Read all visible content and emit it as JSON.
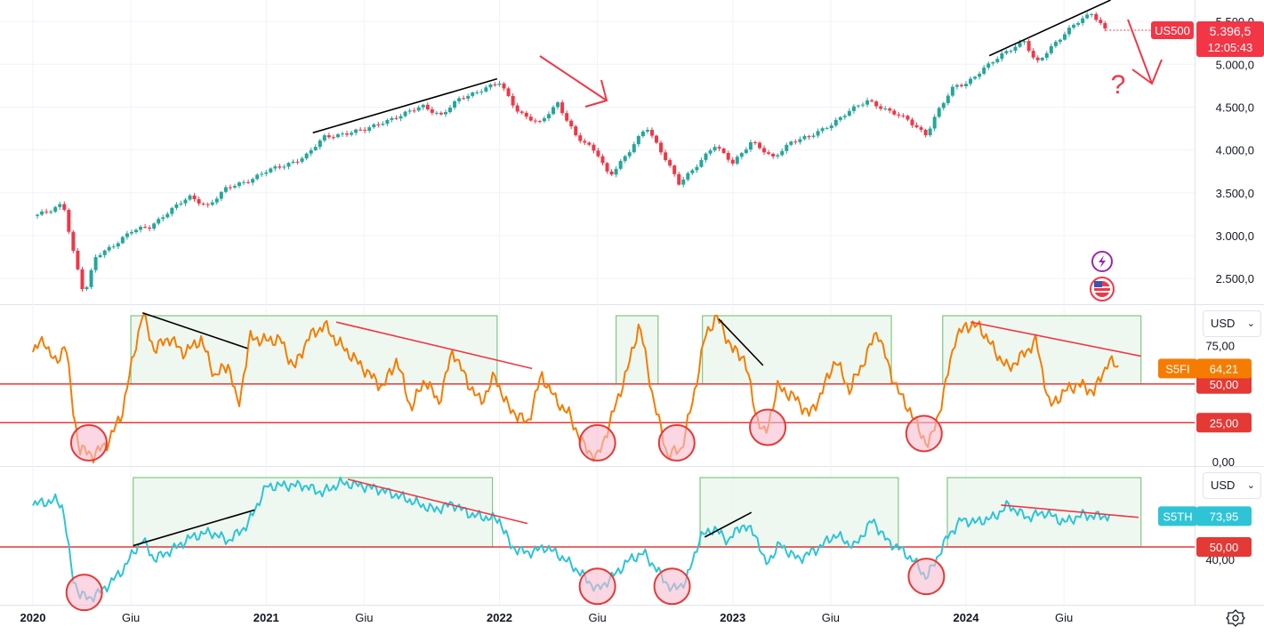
{
  "chart_data": [
    {
      "type": "candlestick",
      "symbol": "US500",
      "last_price": "5.396,5",
      "countdown": "12:05:43",
      "y_ticks": [
        "5.500,0",
        "5.000,0",
        "4.500,0",
        "4.000,0",
        "3.500,0",
        "3.000,0",
        "2.500,0"
      ],
      "ylim": [
        2200,
        5750
      ],
      "x_ticks": [
        "2020",
        "Giu",
        "2021",
        "Giu",
        "2022",
        "Giu",
        "2023",
        "Giu",
        "2024",
        "Giu"
      ],
      "close_path": [
        [
          2020.0,
          3230
        ],
        [
          2020.08,
          3290
        ],
        [
          2020.13,
          3380
        ],
        [
          2020.17,
          2850
        ],
        [
          2020.22,
          2300
        ],
        [
          2020.27,
          2750
        ],
        [
          2020.35,
          2900
        ],
        [
          2020.42,
          3050
        ],
        [
          2020.5,
          3100
        ],
        [
          2020.58,
          3280
        ],
        [
          2020.67,
          3450
        ],
        [
          2020.75,
          3350
        ],
        [
          2020.83,
          3550
        ],
        [
          2020.92,
          3640
        ],
        [
          2021.0,
          3750
        ],
        [
          2021.08,
          3820
        ],
        [
          2021.17,
          3930
        ],
        [
          2021.25,
          4150
        ],
        [
          2021.33,
          4190
        ],
        [
          2021.42,
          4230
        ],
        [
          2021.5,
          4330
        ],
        [
          2021.58,
          4400
        ],
        [
          2021.67,
          4520
        ],
        [
          2021.75,
          4400
        ],
        [
          2021.83,
          4600
        ],
        [
          2021.92,
          4700
        ],
        [
          2022.0,
          4780
        ],
        [
          2022.08,
          4450
        ],
        [
          2022.17,
          4300
        ],
        [
          2022.25,
          4550
        ],
        [
          2022.33,
          4150
        ],
        [
          2022.42,
          3960
        ],
        [
          2022.47,
          3700
        ],
        [
          2022.55,
          3950
        ],
        [
          2022.63,
          4280
        ],
        [
          2022.7,
          3950
        ],
        [
          2022.77,
          3600
        ],
        [
          2022.83,
          3780
        ],
        [
          2022.92,
          4050
        ],
        [
          2023.0,
          3850
        ],
        [
          2023.08,
          4100
        ],
        [
          2023.17,
          3900
        ],
        [
          2023.25,
          4100
        ],
        [
          2023.33,
          4150
        ],
        [
          2023.42,
          4300
        ],
        [
          2023.5,
          4450
        ],
        [
          2023.58,
          4580
        ],
        [
          2023.67,
          4450
        ],
        [
          2023.75,
          4350
        ],
        [
          2023.83,
          4180
        ],
        [
          2023.88,
          4450
        ],
        [
          2023.95,
          4750
        ],
        [
          2024.0,
          4780
        ],
        [
          2024.08,
          4950
        ],
        [
          2024.17,
          5150
        ],
        [
          2024.25,
          5270
        ],
        [
          2024.3,
          5000
        ],
        [
          2024.38,
          5250
        ],
        [
          2024.46,
          5450
        ],
        [
          2024.54,
          5600
        ],
        [
          2024.6,
          5400
        ]
      ],
      "trendlines": [
        {
          "color": "#000000",
          "from": [
            2021.2,
            4200
          ],
          "to": [
            2021.99,
            4830
          ]
        },
        {
          "color": "#000000",
          "from": [
            2024.1,
            5100
          ],
          "to": [
            2024.62,
            5750
          ]
        }
      ]
    },
    {
      "type": "line",
      "series": [
        {
          "name": "S5FI",
          "value_label": "64,21",
          "color": "#f57c00"
        }
      ],
      "y_ticks": [
        "75,00",
        "50,00",
        "25,00",
        "0,00"
      ],
      "ylim": [
        -3,
        101
      ],
      "level_lines": [
        {
          "value": 50,
          "label": "50,00"
        },
        {
          "value": 25,
          "label": "25,00"
        }
      ],
      "path": [
        [
          2020.0,
          72
        ],
        [
          2020.05,
          78
        ],
        [
          2020.1,
          62
        ],
        [
          2020.14,
          78
        ],
        [
          2020.17,
          35
        ],
        [
          2020.2,
          8
        ],
        [
          2020.26,
          4
        ],
        [
          2020.32,
          12
        ],
        [
          2020.38,
          30
        ],
        [
          2020.42,
          60
        ],
        [
          2020.47,
          96
        ],
        [
          2020.52,
          72
        ],
        [
          2020.58,
          80
        ],
        [
          2020.65,
          70
        ],
        [
          2020.72,
          79
        ],
        [
          2020.78,
          55
        ],
        [
          2020.84,
          63
        ],
        [
          2020.88,
          34
        ],
        [
          2020.93,
          80
        ],
        [
          2021.0,
          78
        ],
        [
          2021.06,
          79
        ],
        [
          2021.12,
          60
        ],
        [
          2021.18,
          80
        ],
        [
          2021.25,
          88
        ],
        [
          2021.3,
          78
        ],
        [
          2021.38,
          66
        ],
        [
          2021.45,
          55
        ],
        [
          2021.5,
          48
        ],
        [
          2021.56,
          66
        ],
        [
          2021.62,
          34
        ],
        [
          2021.68,
          53
        ],
        [
          2021.74,
          38
        ],
        [
          2021.8,
          72
        ],
        [
          2021.86,
          52
        ],
        [
          2021.92,
          38
        ],
        [
          2021.98,
          55
        ],
        [
          2022.04,
          34
        ],
        [
          2022.08,
          30
        ],
        [
          2022.12,
          24
        ],
        [
          2022.18,
          56
        ],
        [
          2022.24,
          40
        ],
        [
          2022.3,
          30
        ],
        [
          2022.36,
          10
        ],
        [
          2022.42,
          2
        ],
        [
          2022.48,
          28
        ],
        [
          2022.55,
          60
        ],
        [
          2022.6,
          89
        ],
        [
          2022.66,
          40
        ],
        [
          2022.72,
          4
        ],
        [
          2022.78,
          8
        ],
        [
          2022.83,
          40
        ],
        [
          2022.88,
          80
        ],
        [
          2022.93,
          94
        ],
        [
          2023.0,
          72
        ],
        [
          2023.05,
          67
        ],
        [
          2023.1,
          30
        ],
        [
          2023.14,
          16
        ],
        [
          2023.19,
          48
        ],
        [
          2023.26,
          42
        ],
        [
          2023.33,
          30
        ],
        [
          2023.38,
          44
        ],
        [
          2023.44,
          66
        ],
        [
          2023.5,
          46
        ],
        [
          2023.56,
          64
        ],
        [
          2023.62,
          85
        ],
        [
          2023.67,
          60
        ],
        [
          2023.72,
          42
        ],
        [
          2023.76,
          33
        ],
        [
          2023.8,
          20
        ],
        [
          2023.84,
          10
        ],
        [
          2023.9,
          40
        ],
        [
          2023.95,
          78
        ],
        [
          2024.0,
          88
        ],
        [
          2024.06,
          87
        ],
        [
          2024.12,
          72
        ],
        [
          2024.18,
          60
        ],
        [
          2024.24,
          68
        ],
        [
          2024.3,
          78
        ],
        [
          2024.36,
          35
        ],
        [
          2024.42,
          45
        ],
        [
          2024.48,
          50
        ],
        [
          2024.55,
          45
        ],
        [
          2024.61,
          65
        ],
        [
          2024.66,
          60
        ]
      ],
      "zones": [
        [
          2020.42,
          2021.99
        ],
        [
          2022.5,
          2022.68
        ],
        [
          2022.87,
          2023.68
        ],
        [
          2023.9,
          2024.75
        ]
      ],
      "trendlines": [
        {
          "color": "#000000",
          "from": [
            2020.47,
            96
          ],
          "to": [
            2020.92,
            73
          ]
        },
        {
          "color": "#f23645",
          "from": [
            2021.3,
            90
          ],
          "to": [
            2022.14,
            60
          ]
        },
        {
          "color": "#000000",
          "from": [
            2022.94,
            92
          ],
          "to": [
            2023.13,
            62
          ]
        },
        {
          "color": "#f23645",
          "from": [
            2024.02,
            90
          ],
          "to": [
            2024.75,
            68
          ]
        }
      ],
      "circles": [
        [
          2020.24,
          12
        ],
        [
          2022.42,
          12
        ],
        [
          2022.76,
          12
        ],
        [
          2023.15,
          22
        ],
        [
          2023.82,
          18
        ]
      ]
    },
    {
      "type": "line",
      "series": [
        {
          "name": "S5TH",
          "value_label": "73,95",
          "color": "#2ec4d6"
        }
      ],
      "y_ticks": [
        "40,00"
      ],
      "ylim": [
        3,
        115
      ],
      "level_lines": [
        {
          "value": 50,
          "label": "50,00"
        }
      ],
      "path": [
        [
          2020.0,
          85
        ],
        [
          2020.05,
          86
        ],
        [
          2020.1,
          88
        ],
        [
          2020.13,
          82
        ],
        [
          2020.17,
          25
        ],
        [
          2020.2,
          12
        ],
        [
          2020.24,
          8
        ],
        [
          2020.3,
          15
        ],
        [
          2020.38,
          30
        ],
        [
          2020.43,
          45
        ],
        [
          2020.47,
          56
        ],
        [
          2020.52,
          40
        ],
        [
          2020.6,
          48
        ],
        [
          2020.68,
          58
        ],
        [
          2020.76,
          62
        ],
        [
          2020.84,
          55
        ],
        [
          2020.92,
          68
        ],
        [
          2021.0,
          99
        ],
        [
          2021.08,
          100
        ],
        [
          2021.16,
          100
        ],
        [
          2021.24,
          94
        ],
        [
          2021.32,
          102
        ],
        [
          2021.4,
          100
        ],
        [
          2021.48,
          97
        ],
        [
          2021.56,
          92
        ],
        [
          2021.64,
          86
        ],
        [
          2021.72,
          80
        ],
        [
          2021.8,
          85
        ],
        [
          2021.88,
          76
        ],
        [
          2021.94,
          74
        ],
        [
          2022.0,
          72
        ],
        [
          2022.05,
          50
        ],
        [
          2022.12,
          45
        ],
        [
          2022.2,
          50
        ],
        [
          2022.28,
          40
        ],
        [
          2022.34,
          30
        ],
        [
          2022.42,
          15
        ],
        [
          2022.48,
          25
        ],
        [
          2022.56,
          40
        ],
        [
          2022.62,
          45
        ],
        [
          2022.68,
          30
        ],
        [
          2022.74,
          15
        ],
        [
          2022.8,
          22
        ],
        [
          2022.86,
          58
        ],
        [
          2022.92,
          65
        ],
        [
          2022.98,
          55
        ],
        [
          2023.04,
          68
        ],
        [
          2023.1,
          60
        ],
        [
          2023.14,
          35
        ],
        [
          2023.2,
          52
        ],
        [
          2023.28,
          40
        ],
        [
          2023.36,
          48
        ],
        [
          2023.44,
          60
        ],
        [
          2023.52,
          50
        ],
        [
          2023.6,
          72
        ],
        [
          2023.66,
          55
        ],
        [
          2023.72,
          48
        ],
        [
          2023.78,
          38
        ],
        [
          2023.83,
          25
        ],
        [
          2023.86,
          35
        ],
        [
          2023.92,
          58
        ],
        [
          2023.98,
          72
        ],
        [
          2024.04,
          70
        ],
        [
          2024.12,
          74
        ],
        [
          2024.18,
          84
        ],
        [
          2024.26,
          74
        ],
        [
          2024.34,
          78
        ],
        [
          2024.42,
          70
        ],
        [
          2024.5,
          76
        ],
        [
          2024.56,
          75
        ],
        [
          2024.62,
          75
        ]
      ],
      "zones": [
        [
          2020.43,
          2021.97
        ],
        [
          2022.86,
          2023.71
        ],
        [
          2023.92,
          2024.75
        ]
      ],
      "trendlines": [
        {
          "color": "#000000",
          "from": [
            2020.43,
            51
          ],
          "to": [
            2020.95,
            80
          ]
        },
        {
          "color": "#f23645",
          "from": [
            2021.35,
            105
          ],
          "to": [
            2022.12,
            69
          ]
        },
        {
          "color": "#000000",
          "from": [
            2022.88,
            58
          ],
          "to": [
            2023.08,
            78
          ]
        },
        {
          "color": "#f23645",
          "from": [
            2024.15,
            84
          ],
          "to": [
            2024.74,
            74
          ]
        }
      ],
      "circles": [
        [
          2020.22,
          13
        ],
        [
          2022.42,
          18
        ],
        [
          2022.74,
          18
        ],
        [
          2023.83,
          26
        ]
      ]
    }
  ],
  "price_axis": {
    "unit": "USD"
  },
  "time_axis": {
    "settings_icon": "gear-icon"
  },
  "annotations": {
    "question_mark": "?"
  },
  "colors": {
    "up": "#26a69a",
    "down": "#f23645",
    "zone_fill": "#e8f5e9",
    "zone_stroke": "#81c784",
    "level_line": "#e53935",
    "circle_fill": "#f8bbd0",
    "circle_stroke": "#e53935"
  }
}
